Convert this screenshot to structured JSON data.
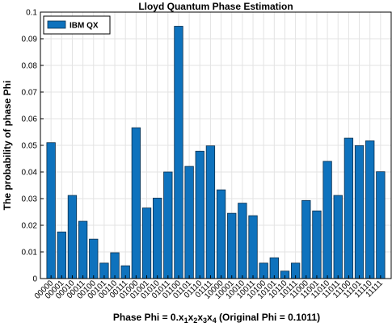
{
  "chart_data": {
    "type": "bar",
    "title": "Lloyd Quantum Phase Estimation",
    "ylabel": "The probability of phase Phi",
    "xlabel_parts": [
      "Phase Phi = 0.x",
      "1",
      "x",
      "2",
      "x",
      "3",
      "x",
      "4",
      " (Original Phi = 0.1011)"
    ],
    "categories": [
      "00000",
      "00001",
      "00010",
      "00011",
      "00100",
      "00101",
      "00110",
      "00111",
      "01000",
      "01001",
      "01010",
      "01011",
      "01100",
      "01101",
      "01110",
      "01111",
      "10000",
      "10001",
      "10010",
      "10011",
      "10100",
      "10101",
      "10110",
      "10111",
      "11000",
      "11001",
      "11010",
      "11011",
      "11100",
      "11101",
      "11110",
      "11111"
    ],
    "series": [
      {
        "name": "IBM QX",
        "values": [
          0.051,
          0.0175,
          0.0312,
          0.0215,
          0.0148,
          0.0058,
          0.0097,
          0.0048,
          0.0566,
          0.0265,
          0.0302,
          0.04,
          0.0947,
          0.0421,
          0.0478,
          0.0498,
          0.0333,
          0.0245,
          0.0283,
          0.0236,
          0.0058,
          0.0078,
          0.0028,
          0.0058,
          0.0293,
          0.0254,
          0.044,
          0.0312,
          0.0527,
          0.0499,
          0.0517,
          0.0401
        ]
      }
    ],
    "ylim": [
      0,
      0.1
    ],
    "yticks": [
      "0",
      "0.01",
      "0.02",
      "0.03",
      "0.04",
      "0.05",
      "0.06",
      "0.07",
      "0.08",
      "0.09",
      "0.1"
    ],
    "grid": true,
    "legend_position": "top-left",
    "bar_color": "#0e72bd",
    "bar_edge_color": "#0b2f4d"
  }
}
